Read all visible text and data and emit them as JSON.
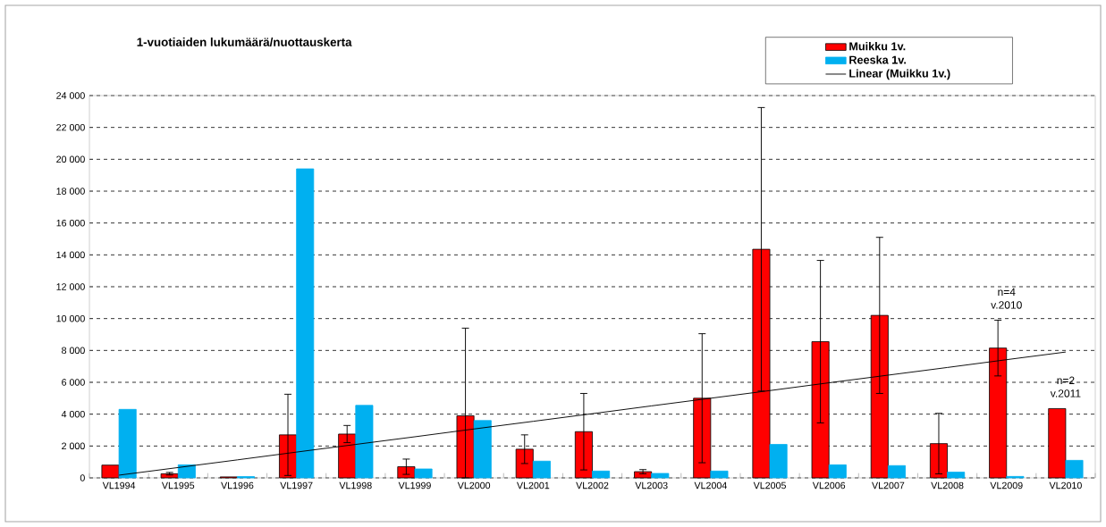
{
  "chart_data": {
    "type": "bar",
    "title": "1-vuotiaiden lukumäärä/nuottauskerta",
    "categories": [
      "VL1994",
      "VL1995",
      "VL1996",
      "VL1997",
      "VL1998",
      "VL1999",
      "VL2000",
      "VL2001",
      "VL2002",
      "VL2003",
      "VL2004",
      "VL2005",
      "VL2006",
      "VL2007",
      "VL2008",
      "VL2009",
      "VL2010"
    ],
    "series": [
      {
        "name": "Muikku 1v.",
        "color": "#ff0000",
        "values": [
          800,
          260,
          60,
          2700,
          2750,
          700,
          3900,
          1800,
          2900,
          390,
          5000,
          14350,
          8550,
          10200,
          2150,
          8150,
          4350
        ],
        "errors": [
          null,
          80,
          null,
          2550,
          540,
          480,
          [
            0,
            9400
          ],
          900,
          2400,
          130,
          4050,
          8900,
          5100,
          4900,
          1900,
          1750,
          null
        ]
      },
      {
        "name": "Reeska 1v.",
        "color": "#00b0f0",
        "values": [
          4300,
          820,
          80,
          19400,
          4550,
          560,
          3600,
          1050,
          430,
          280,
          430,
          2100,
          820,
          770,
          360,
          90,
          1100
        ]
      },
      {
        "name": "Linear (Muikku 1v.)",
        "type": "line",
        "color": "#000000",
        "values": [
          170,
          650,
          1130,
          1620,
          2100,
          2580,
          3070,
          3550,
          4030,
          4520,
          5000,
          5480,
          5970,
          6450,
          6930,
          7420,
          7900
        ]
      }
    ],
    "ylim": [
      0,
      24000
    ],
    "yticks": [
      0,
      {
        "value": 2000,
        "label": "2 000"
      },
      {
        "value": 4000,
        "label": "4 000"
      },
      {
        "value": 6000,
        "label": "6 000"
      },
      {
        "value": 8000,
        "label": "8 000"
      },
      {
        "value": 10000,
        "label": "10 000"
      },
      {
        "value": 12000,
        "label": "12 000"
      },
      {
        "value": 14000,
        "label": "14 000"
      },
      {
        "value": 16000,
        "label": "16 000"
      },
      {
        "value": 18000,
        "label": "18 000"
      },
      {
        "value": 20000,
        "label": "20 000"
      },
      {
        "value": 22000,
        "label": "22 000"
      },
      {
        "value": 24000,
        "label": "24 000"
      }
    ],
    "grid": "y",
    "legend": "top right",
    "annotations": [
      "n=4 v.2010",
      "n=2 v.2011"
    ]
  }
}
